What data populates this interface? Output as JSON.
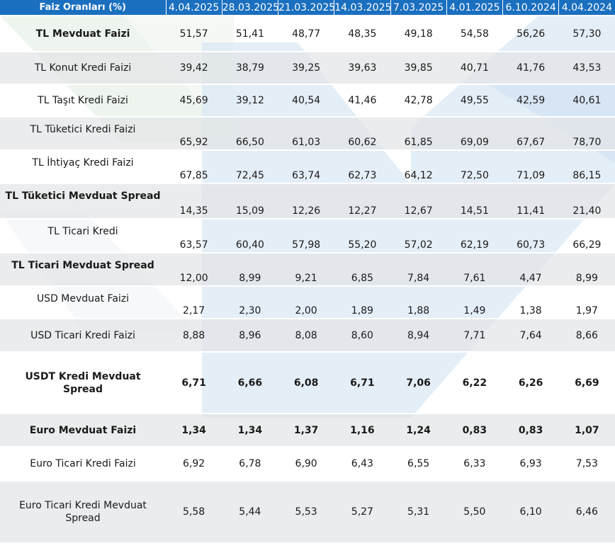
{
  "header": {
    "title": "Faiz Oranları (%)",
    "dates": [
      "4.04.2025",
      "28.03.2025",
      "21.03.2025",
      "14.03.2025",
      "7.03.2025",
      "4.01.2025",
      "6.10.2024",
      "4.04.2024"
    ]
  },
  "rows": [
    {
      "label": "TL Mevduat Faizi",
      "values": [
        "51,57",
        "51,41",
        "48,77",
        "48,35",
        "49,18",
        "54,58",
        "56,26",
        "57,30"
      ]
    },
    {
      "label": "TL Konut Kredi Faizi",
      "values": [
        "39,42",
        "38,79",
        "39,25",
        "39,63",
        "39,85",
        "40,71",
        "41,76",
        "43,53"
      ]
    },
    {
      "label": "TL Taşıt Kredi Faizi",
      "values": [
        "45,69",
        "39,12",
        "40,54",
        "41,46",
        "42,78",
        "49,55",
        "42,59",
        "40,61"
      ]
    },
    {
      "label": "TL Tüketici Kredi Faizi",
      "values": [
        "65,92",
        "66,50",
        "61,03",
        "60,62",
        "61,85",
        "69,09",
        "67,67",
        "78,70"
      ]
    },
    {
      "label": "TL İhtiyaç Kredi Faizi",
      "values": [
        "67,85",
        "72,45",
        "63,74",
        "62,73",
        "64,12",
        "72,50",
        "71,09",
        "86,15"
      ]
    },
    {
      "label": "TL Tüketici Mevduat Spread",
      "values": [
        "14,35",
        "15,09",
        "12,26",
        "12,27",
        "12,67",
        "14,51",
        "11,41",
        "21,40"
      ]
    },
    {
      "label": "TL Ticari Kredi",
      "values": [
        "63,57",
        "60,40",
        "57,98",
        "55,20",
        "57,02",
        "62,19",
        "60,73",
        "66,29"
      ]
    },
    {
      "label": "TL Ticari Mevduat Spread",
      "values": [
        "12,00",
        "8,99",
        "9,21",
        "6,85",
        "7,84",
        "7,61",
        "4,47",
        "8,99"
      ]
    },
    {
      "label": "USD Mevduat Faizi",
      "values": [
        "2,17",
        "2,30",
        "2,00",
        "1,89",
        "1,88",
        "1,49",
        "1,38",
        "1,97"
      ]
    },
    {
      "label": "USD Ticari Kredi Faizi",
      "values": [
        "8,88",
        "8,96",
        "8,08",
        "8,60",
        "8,94",
        "7,71",
        "7,64",
        "8,66"
      ]
    },
    {
      "label": "USDT Kredi Mevduat Spread",
      "values": [
        "6,71",
        "6,66",
        "6,08",
        "6,71",
        "7,06",
        "6,22",
        "6,26",
        "6,69"
      ]
    },
    {
      "label": "Euro Mevduat Faizi",
      "values": [
        "1,34",
        "1,34",
        "1,37",
        "1,16",
        "1,24",
        "0,83",
        "0,83",
        "1,07"
      ]
    },
    {
      "label": "Euro Ticari Kredi Faizi",
      "values": [
        "6,92",
        "6,78",
        "6,90",
        "6,43",
        "6,55",
        "6,33",
        "6,93",
        "7,53"
      ]
    },
    {
      "label": "Euro Ticari Kredi Mevduat Spread",
      "values": [
        "5,58",
        "5,44",
        "5,53",
        "5,27",
        "5,31",
        "5,50",
        "6,10",
        "6,46"
      ]
    }
  ],
  "colors": {
    "header_bg": "#1a6fbf",
    "row_shade": "#e2e4e6",
    "watermark_blue": "#dbe8f4",
    "watermark_green": "#e6f1e6"
  }
}
